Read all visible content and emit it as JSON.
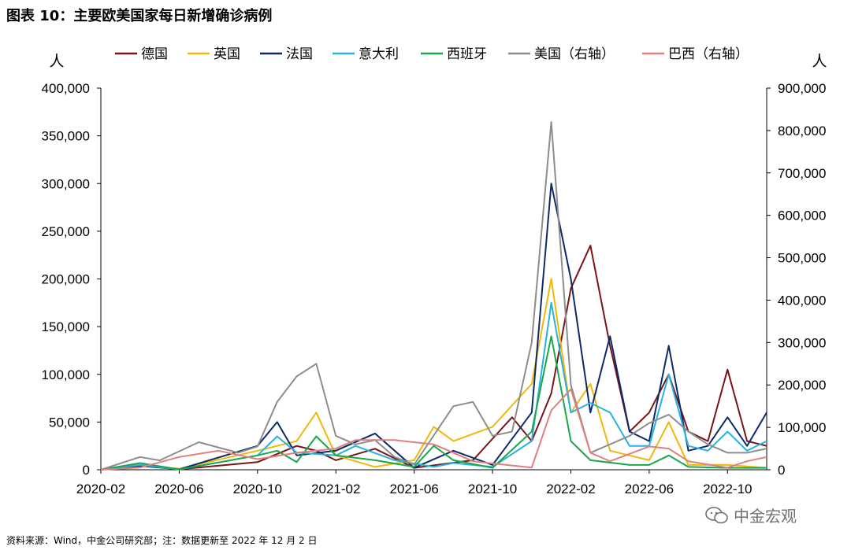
{
  "title": "图表 10：主要欧美国家每日新增确诊病例",
  "source": "资料来源：Wind，中金公司研究部；注：数据更新至 2022 年 12 月 2 日",
  "watermark": "中金宏观",
  "chart_data": {
    "type": "line",
    "y_left_label": "人",
    "y_right_label": "人",
    "y_left_ticks": [
      "0",
      "50,000",
      "100,000",
      "150,000",
      "200,000",
      "250,000",
      "300,000",
      "350,000",
      "400,000"
    ],
    "y_right_ticks": [
      "0",
      "100,000",
      "200,000",
      "300,000",
      "400,000",
      "500,000",
      "600,000",
      "700,000",
      "800,000",
      "900,000"
    ],
    "ylim_left": [
      0,
      400000
    ],
    "ylim_right": [
      0,
      900000
    ],
    "x_ticks": [
      "2020-02",
      "2020-06",
      "2020-10",
      "2021-02",
      "2021-06",
      "2021-10",
      "2022-02",
      "2022-06",
      "2022-10"
    ],
    "x_range": [
      "2020-02",
      "2022-12"
    ],
    "legend_position": "top",
    "series": [
      {
        "name": "德国",
        "axis": "left",
        "color": "#7b1418",
        "points": [
          [
            "2020-02",
            0
          ],
          [
            "2020-04",
            5000
          ],
          [
            "2020-06",
            500
          ],
          [
            "2020-10",
            8000
          ],
          [
            "2020-12",
            25000
          ],
          [
            "2021-01",
            20000
          ],
          [
            "2021-02",
            10000
          ],
          [
            "2021-04",
            22000
          ],
          [
            "2021-06",
            2000
          ],
          [
            "2021-09",
            10000
          ],
          [
            "2021-11",
            55000
          ],
          [
            "2021-12",
            30000
          ],
          [
            "2022-01",
            80000
          ],
          [
            "2022-02",
            190000
          ],
          [
            "2022-03",
            235000
          ],
          [
            "2022-04",
            130000
          ],
          [
            "2022-05",
            40000
          ],
          [
            "2022-06",
            60000
          ],
          [
            "2022-07",
            100000
          ],
          [
            "2022-08",
            40000
          ],
          [
            "2022-09",
            30000
          ],
          [
            "2022-10",
            105000
          ],
          [
            "2022-11",
            30000
          ],
          [
            "2022-12",
            25000
          ]
        ]
      },
      {
        "name": "英国",
        "axis": "left",
        "color": "#f2b70a",
        "points": [
          [
            "2020-02",
            0
          ],
          [
            "2020-04",
            5000
          ],
          [
            "2020-06",
            1000
          ],
          [
            "2020-10",
            20000
          ],
          [
            "2020-12",
            30000
          ],
          [
            "2021-01",
            60000
          ],
          [
            "2021-02",
            15000
          ],
          [
            "2021-04",
            3000
          ],
          [
            "2021-06",
            10000
          ],
          [
            "2021-07",
            45000
          ],
          [
            "2021-08",
            30000
          ],
          [
            "2021-10",
            45000
          ],
          [
            "2021-12",
            90000
          ],
          [
            "2022-01",
            200000
          ],
          [
            "2022-02",
            60000
          ],
          [
            "2022-03",
            90000
          ],
          [
            "2022-04",
            20000
          ],
          [
            "2022-06",
            10000
          ],
          [
            "2022-07",
            50000
          ],
          [
            "2022-08",
            5000
          ],
          [
            "2022-10",
            5000
          ],
          [
            "2022-12",
            2000
          ]
        ]
      },
      {
        "name": "法国",
        "axis": "left",
        "color": "#0c2a6b",
        "points": [
          [
            "2020-02",
            0
          ],
          [
            "2020-04",
            4000
          ],
          [
            "2020-06",
            500
          ],
          [
            "2020-10",
            25000
          ],
          [
            "2020-11",
            50000
          ],
          [
            "2020-12",
            15000
          ],
          [
            "2021-02",
            20000
          ],
          [
            "2021-04",
            38000
          ],
          [
            "2021-06",
            2000
          ],
          [
            "2021-08",
            20000
          ],
          [
            "2021-10",
            5000
          ],
          [
            "2021-12",
            60000
          ],
          [
            "2022-01",
            300000
          ],
          [
            "2022-02",
            200000
          ],
          [
            "2022-03",
            60000
          ],
          [
            "2022-04",
            140000
          ],
          [
            "2022-05",
            40000
          ],
          [
            "2022-06",
            30000
          ],
          [
            "2022-07",
            130000
          ],
          [
            "2022-08",
            20000
          ],
          [
            "2022-09",
            25000
          ],
          [
            "2022-10",
            55000
          ],
          [
            "2022-11",
            25000
          ],
          [
            "2022-12",
            60000
          ]
        ]
      },
      {
        "name": "意大利",
        "axis": "left",
        "color": "#27b2e0",
        "points": [
          [
            "2020-02",
            0
          ],
          [
            "2020-04",
            5000
          ],
          [
            "2020-06",
            300
          ],
          [
            "2020-10",
            15000
          ],
          [
            "2020-11",
            35000
          ],
          [
            "2020-12",
            18000
          ],
          [
            "2021-02",
            15000
          ],
          [
            "2021-03",
            25000
          ],
          [
            "2021-05",
            10000
          ],
          [
            "2021-07",
            3000
          ],
          [
            "2021-08",
            7000
          ],
          [
            "2021-10",
            3000
          ],
          [
            "2021-12",
            30000
          ],
          [
            "2022-01",
            175000
          ],
          [
            "2022-02",
            60000
          ],
          [
            "2022-03",
            70000
          ],
          [
            "2022-04",
            60000
          ],
          [
            "2022-05",
            25000
          ],
          [
            "2022-06",
            25000
          ],
          [
            "2022-07",
            100000
          ],
          [
            "2022-08",
            25000
          ],
          [
            "2022-09",
            20000
          ],
          [
            "2022-10",
            40000
          ],
          [
            "2022-11",
            20000
          ],
          [
            "2022-12",
            30000
          ]
        ]
      },
      {
        "name": "西班牙",
        "axis": "left",
        "color": "#19a74a",
        "points": [
          [
            "2020-02",
            0
          ],
          [
            "2020-04",
            7000
          ],
          [
            "2020-06",
            300
          ],
          [
            "2020-10",
            15000
          ],
          [
            "2020-11",
            20000
          ],
          [
            "2020-12",
            8000
          ],
          [
            "2021-01",
            35000
          ],
          [
            "2021-02",
            15000
          ],
          [
            "2021-04",
            10000
          ],
          [
            "2021-06",
            3000
          ],
          [
            "2021-07",
            25000
          ],
          [
            "2021-08",
            10000
          ],
          [
            "2021-10",
            2000
          ],
          [
            "2021-12",
            40000
          ],
          [
            "2022-01",
            140000
          ],
          [
            "2022-02",
            30000
          ],
          [
            "2022-03",
            10000
          ],
          [
            "2022-05",
            5000
          ],
          [
            "2022-06",
            5000
          ],
          [
            "2022-07",
            15000
          ],
          [
            "2022-08",
            3000
          ],
          [
            "2022-10",
            2000
          ],
          [
            "2022-12",
            2000
          ]
        ]
      },
      {
        "name": "美国（右轴）",
        "axis": "right",
        "color": "#8d8d8d",
        "points": [
          [
            "2020-02",
            0
          ],
          [
            "2020-04",
            30000
          ],
          [
            "2020-05",
            22000
          ],
          [
            "2020-07",
            65000
          ],
          [
            "2020-09",
            40000
          ],
          [
            "2020-10",
            55000
          ],
          [
            "2020-11",
            160000
          ],
          [
            "2020-12",
            220000
          ],
          [
            "2021-01",
            250000
          ],
          [
            "2021-02",
            80000
          ],
          [
            "2021-03",
            60000
          ],
          [
            "2021-04",
            70000
          ],
          [
            "2021-05",
            30000
          ],
          [
            "2021-06",
            12000
          ],
          [
            "2021-08",
            150000
          ],
          [
            "2021-09",
            160000
          ],
          [
            "2021-10",
            80000
          ],
          [
            "2021-11",
            90000
          ],
          [
            "2021-12",
            300000
          ],
          [
            "2022-01",
            820000
          ],
          [
            "2022-02",
            200000
          ],
          [
            "2022-03",
            40000
          ],
          [
            "2022-05",
            80000
          ],
          [
            "2022-06",
            110000
          ],
          [
            "2022-07",
            130000
          ],
          [
            "2022-08",
            90000
          ],
          [
            "2022-09",
            60000
          ],
          [
            "2022-10",
            40000
          ],
          [
            "2022-11",
            40000
          ],
          [
            "2022-12",
            50000
          ]
        ]
      },
      {
        "name": "巴西（右轴）",
        "axis": "right",
        "color": "#e0807e",
        "points": [
          [
            "2020-02",
            0
          ],
          [
            "2020-04",
            5000
          ],
          [
            "2020-06",
            30000
          ],
          [
            "2020-08",
            45000
          ],
          [
            "2020-10",
            25000
          ],
          [
            "2020-12",
            40000
          ],
          [
            "2021-02",
            50000
          ],
          [
            "2021-03",
            70000
          ],
          [
            "2021-05",
            70000
          ],
          [
            "2021-07",
            60000
          ],
          [
            "2021-09",
            20000
          ],
          [
            "2021-11",
            10000
          ],
          [
            "2021-12",
            5000
          ],
          [
            "2022-01",
            140000
          ],
          [
            "2022-02",
            190000
          ],
          [
            "2022-03",
            40000
          ],
          [
            "2022-04",
            20000
          ],
          [
            "2022-06",
            55000
          ],
          [
            "2022-07",
            50000
          ],
          [
            "2022-08",
            20000
          ],
          [
            "2022-10",
            5000
          ],
          [
            "2022-11",
            20000
          ],
          [
            "2022-12",
            30000
          ]
        ]
      }
    ]
  }
}
